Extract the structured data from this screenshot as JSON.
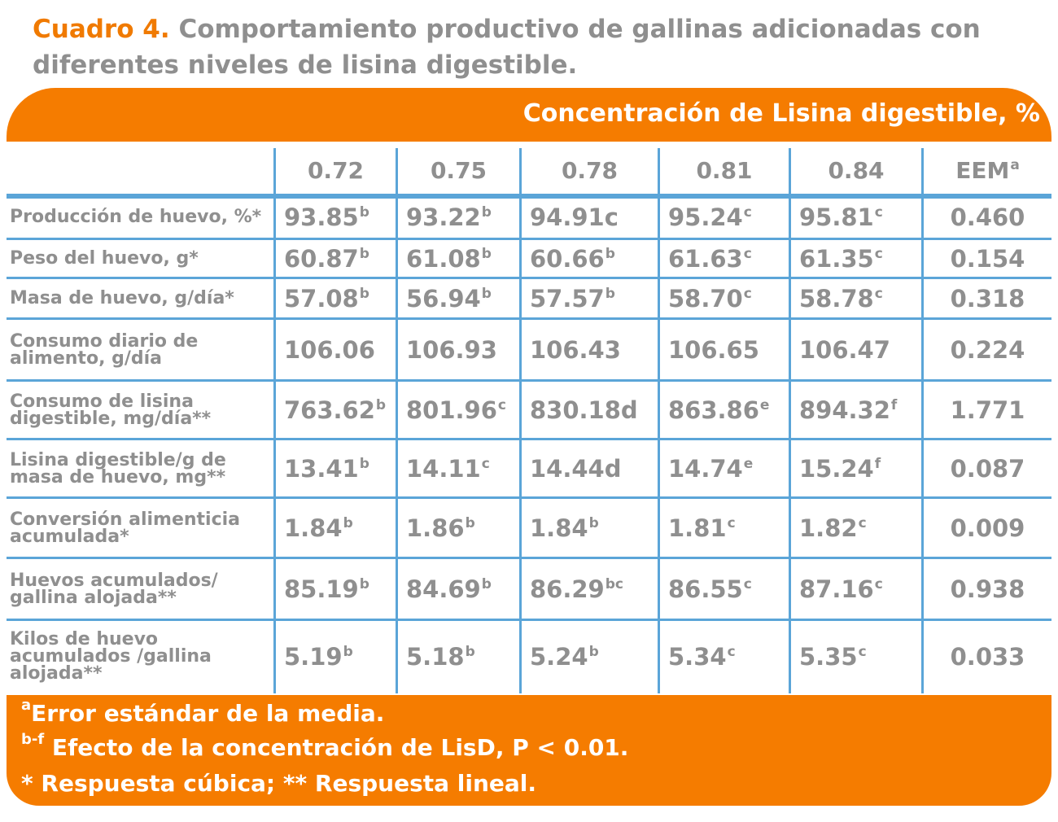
{
  "title": {
    "lead": "Cuadro 4.",
    "text": "Comportamiento productivo de gallinas adicionadas con diferentes niveles de lisina digestible."
  },
  "banner": "Concentración de Lisina digestible, %",
  "columns": [
    "0.72",
    "0.75",
    "0.78",
    "0.81",
    "0.84",
    "EEM"
  ],
  "eem_sup": "a",
  "rows": [
    {
      "label": "Producción de huevo, %*",
      "values": [
        [
          "93.85",
          "b"
        ],
        [
          "93.22",
          "b"
        ],
        [
          "94.91c",
          ""
        ],
        [
          "95.24",
          "c"
        ],
        [
          "95.81",
          "c"
        ]
      ],
      "eem": "0.460"
    },
    {
      "label": "Peso del huevo, g*",
      "values": [
        [
          "60.87",
          "b"
        ],
        [
          "61.08",
          "b"
        ],
        [
          "60.66",
          "b"
        ],
        [
          "61.63",
          "c"
        ],
        [
          "61.35",
          "c"
        ]
      ],
      "eem": "0.154"
    },
    {
      "label": "Masa de huevo, g/día*",
      "values": [
        [
          "57.08",
          "b"
        ],
        [
          "56.94",
          "b"
        ],
        [
          "57.57",
          "b"
        ],
        [
          "58.70",
          "c"
        ],
        [
          "58.78",
          "c"
        ]
      ],
      "eem": "0.318"
    },
    {
      "label": "Consumo diario de alimento, g/día",
      "values": [
        [
          "106.06",
          ""
        ],
        [
          "106.93",
          ""
        ],
        [
          "106.43",
          ""
        ],
        [
          "106.65",
          ""
        ],
        [
          "106.47",
          ""
        ]
      ],
      "eem": "0.224"
    },
    {
      "label": "Consumo de lisina digestible, mg/día**",
      "values": [
        [
          "763.62",
          "b"
        ],
        [
          "801.96",
          "c"
        ],
        [
          "830.18d",
          ""
        ],
        [
          "863.86",
          "e"
        ],
        [
          "894.32",
          "f"
        ]
      ],
      "eem": "1.771"
    },
    {
      "label": "Lisina digestible/g de masa de huevo, mg**",
      "values": [
        [
          "13.41",
          "b"
        ],
        [
          "14.11",
          "c"
        ],
        [
          "14.44d",
          ""
        ],
        [
          "14.74",
          "e"
        ],
        [
          "15.24",
          "f"
        ]
      ],
      "eem": "0.087"
    },
    {
      "label": "Conversión alimenticia acumulada*",
      "values": [
        [
          "1.84",
          "b"
        ],
        [
          "1.86",
          "b"
        ],
        [
          "1.84",
          "b"
        ],
        [
          "1.81",
          "c"
        ],
        [
          "1.82",
          "c"
        ]
      ],
      "eem": "0.009"
    },
    {
      "label": "Huevos acumulados/ gallina alojada**",
      "values": [
        [
          "85.19",
          "b"
        ],
        [
          "84.69",
          "b"
        ],
        [
          "86.29",
          "bc"
        ],
        [
          "86.55",
          "c"
        ],
        [
          "87.16",
          "c"
        ]
      ],
      "eem": "0.938"
    },
    {
      "label": "Kilos de huevo acumulados /gallina alojada**",
      "values": [
        [
          "5.19",
          "b"
        ],
        [
          "5.18",
          "b"
        ],
        [
          "5.24",
          "b"
        ],
        [
          "5.34",
          "c"
        ],
        [
          "5.35",
          "c"
        ]
      ],
      "eem": "0.033"
    }
  ],
  "footer": {
    "line1_sup": "a",
    "line1": "Error estándar de la media.",
    "line2_sup": "b-f",
    "line2": " Efecto de la concentración de LisD, P < 0.01.",
    "line3": "* Respuesta cúbica; ** Respuesta lineal."
  }
}
